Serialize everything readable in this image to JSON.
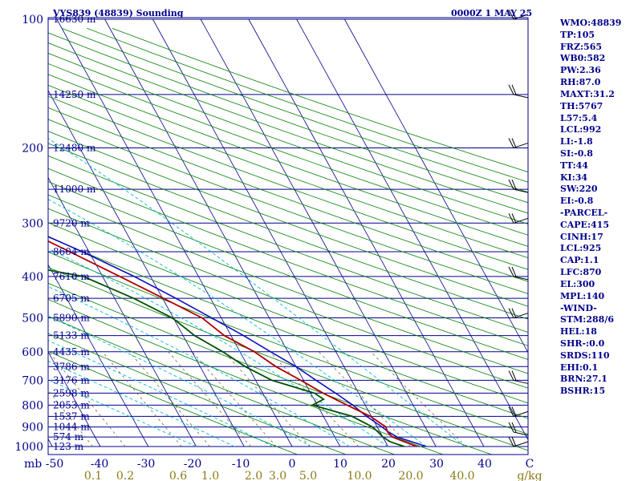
{
  "header": {
    "station_title": "VYS839 (48839) Sounding",
    "time_label": "0000Z  1 MAY 25"
  },
  "colors": {
    "frame": "#00008b",
    "isobar": "#00008b",
    "isotherm": "#00008b",
    "dry_adiabat": "#008000",
    "moist_adiabat": "#00bcd4",
    "mixing_ratio": "#6b6b3a",
    "temperature": "#b00000",
    "dewpoint": "#005000",
    "parcel": "#1010c0",
    "wind": "#000000",
    "label_text": "#00008b",
    "mixing_label_text": "#8b7a16"
  },
  "axes": {
    "pressure_ticks": [
      "100",
      "200",
      "300",
      "400",
      "500",
      "600",
      "700",
      "800",
      "900",
      "1000"
    ],
    "pressure_unit": "mb",
    "temperature_ticks": [
      "-50",
      "-40",
      "-30",
      "-20",
      "-10",
      "0",
      "10",
      "20",
      "30",
      "40",
      "C"
    ],
    "mixing_ratio_ticks": [
      "0.1",
      "0.2",
      "0.6",
      "1.0",
      "2.0",
      "3.0",
      "5.0",
      "10.0",
      "20.0",
      "40.0",
      "g/kg"
    ]
  },
  "heights": [
    {
      "p": 100,
      "label": "16630 m"
    },
    {
      "p": 150,
      "label": "14250 m"
    },
    {
      "p": 200,
      "label": "12480 m"
    },
    {
      "p": 250,
      "label": "11000 m"
    },
    {
      "p": 300,
      "label": "9720 m"
    },
    {
      "p": 350,
      "label": "8604 m"
    },
    {
      "p": 400,
      "label": "7610 m"
    },
    {
      "p": 450,
      "label": "6705 m"
    },
    {
      "p": 500,
      "label": "5890 m"
    },
    {
      "p": 550,
      "label": "5133 m"
    },
    {
      "p": 600,
      "label": "4435 m"
    },
    {
      "p": 650,
      "label": "3786 m"
    },
    {
      "p": 700,
      "label": "3176 m"
    },
    {
      "p": 750,
      "label": "2598 m"
    },
    {
      "p": 800,
      "label": "2053 m"
    },
    {
      "p": 850,
      "label": "1537 m"
    },
    {
      "p": 900,
      "label": "1044 m"
    },
    {
      "p": 950,
      "label": "574 m"
    },
    {
      "p": 1000,
      "label": "123 m"
    }
  ],
  "chart_data": {
    "type": "skew-t",
    "title": "VYS839 (48839) Sounding",
    "ylabel": "mb",
    "xlabel": "C",
    "pressure_range_mb": [
      100,
      1000
    ],
    "temperature_range_c": [
      -50,
      50
    ],
    "temperature_profile": [
      {
        "p": 1000,
        "t": 26.0
      },
      {
        "p": 975,
        "t": 24.0
      },
      {
        "p": 950,
        "t": 22.0
      },
      {
        "p": 925,
        "t": 21.6
      },
      {
        "p": 900,
        "t": 21.8
      },
      {
        "p": 850,
        "t": 19.8
      },
      {
        "p": 800,
        "t": 16.2
      },
      {
        "p": 750,
        "t": 12.6
      },
      {
        "p": 700,
        "t": 9.4
      },
      {
        "p": 650,
        "t": 5.8
      },
      {
        "p": 600,
        "t": 3.0
      },
      {
        "p": 550,
        "t": -1.4
      },
      {
        "p": 500,
        "t": -4.0
      },
      {
        "p": 450,
        "t": -9.8
      },
      {
        "p": 400,
        "t": -16.4
      },
      {
        "p": 350,
        "t": -24.0
      },
      {
        "p": 300,
        "t": -33.0
      },
      {
        "p": 250,
        "t": -43.0
      },
      {
        "p": 200,
        "t": -54.0
      },
      {
        "p": 170,
        "t": -61.0
      },
      {
        "p": 150,
        "t": -67.0
      },
      {
        "p": 130,
        "t": -72.0
      },
      {
        "p": 115,
        "t": -73.0
      },
      {
        "p": 105,
        "t": -73.8
      },
      {
        "p": 100,
        "t": -75.0
      }
    ],
    "dewpoint_profile": [
      {
        "p": 1000,
        "td": 23.4
      },
      {
        "p": 975,
        "td": 21.0
      },
      {
        "p": 950,
        "td": 20.0
      },
      {
        "p": 925,
        "td": 19.6
      },
      {
        "p": 900,
        "td": 19.0
      },
      {
        "p": 850,
        "td": 16.0
      },
      {
        "p": 800,
        "td": 9.0
      },
      {
        "p": 775,
        "td": 12.0
      },
      {
        "p": 750,
        "td": 10.8
      },
      {
        "p": 700,
        "td": 3.4
      },
      {
        "p": 650,
        "td": -0.6
      },
      {
        "p": 600,
        "td": -3.6
      },
      {
        "p": 550,
        "td": -7.6
      },
      {
        "p": 500,
        "td": -10.2
      },
      {
        "p": 450,
        "td": -16.0
      },
      {
        "p": 400,
        "td": -24.0
      },
      {
        "p": 380,
        "td": -33.8
      },
      {
        "p": 350,
        "td": -34.8
      },
      {
        "p": 330,
        "td": -43.0
      },
      {
        "p": 300,
        "td": -44.8
      },
      {
        "p": 270,
        "td": -49.2
      },
      {
        "p": 250,
        "td": -40.8
      },
      {
        "p": 220,
        "td": -55.0
      },
      {
        "p": 200,
        "td": -60.0
      },
      {
        "p": 180,
        "td": -58.0
      },
      {
        "p": 170,
        "td": -71.2
      },
      {
        "p": 160,
        "td": -70.0
      },
      {
        "p": 150,
        "td": -75.0
      },
      {
        "p": 130,
        "td": -73.6
      },
      {
        "p": 115,
        "td": -74.0
      },
      {
        "p": 105,
        "td": -76.0
      },
      {
        "p": 100,
        "td": -77.6
      }
    ],
    "parcel_profile": [
      {
        "p": 1000,
        "t": 28.0
      },
      {
        "p": 950,
        "t": 23.0
      },
      {
        "p": 925,
        "t": 21.8
      },
      {
        "p": 900,
        "t": 21.0
      },
      {
        "p": 850,
        "t": 19.0
      },
      {
        "p": 800,
        "t": 17.4
      },
      {
        "p": 750,
        "t": 15.2
      },
      {
        "p": 700,
        "t": 12.6
      },
      {
        "p": 650,
        "t": 10.0
      },
      {
        "p": 600,
        "t": 6.4
      },
      {
        "p": 550,
        "t": 2.6
      },
      {
        "p": 500,
        "t": -2.0
      },
      {
        "p": 450,
        "t": -7.2
      },
      {
        "p": 400,
        "t": -13.4
      },
      {
        "p": 350,
        "t": -21.4
      },
      {
        "p": 300,
        "t": -31.6
      },
      {
        "p": 250,
        "t": -44.0
      },
      {
        "p": 200,
        "t": -57.6
      },
      {
        "p": 150,
        "t": -73.8
      },
      {
        "p": 130,
        "t": -80.5
      },
      {
        "p": 115,
        "t": -86.0
      }
    ],
    "wind_barbs_mb": [
      100,
      150,
      200,
      250,
      300,
      400,
      500,
      700,
      850,
      925,
      1000
    ],
    "dry_adiabats_k": [
      270,
      280,
      290,
      300,
      310,
      320,
      330,
      340,
      350,
      360,
      370,
      380,
      390,
      400,
      410,
      420,
      430,
      440,
      450,
      460,
      470,
      480,
      490,
      500,
      510,
      520,
      530,
      540
    ],
    "moist_adiabats_c": [
      -20,
      -12,
      -4,
      4,
      12,
      20,
      28,
      36
    ],
    "mixing_ratio_lines_gkg": [
      0.1,
      0.2,
      0.6,
      1.0,
      2.0,
      3.0,
      5.0,
      10.0,
      20.0,
      40.0
    ]
  },
  "indices": [
    "WMO:48839",
    "TP:105",
    "FRZ:565",
    "WB0:582",
    "PW:2.36",
    "RH:87.0",
    "MAXT:31.2",
    "TH:5767",
    "L57:5.4",
    "LCL:992",
    "LI:-1.8",
    "SI:-0.8",
    "TT:44",
    "KI:34",
    "SW:220",
    "EI:-0.8",
    "-PARCEL-",
    "CAPE:415",
    "CINH:17",
    "LCL:925",
    "CAP:1.1",
    "LFC:870",
    "EL:300",
    "MPL:140",
    "-WIND-",
    "STM:288/6",
    "HEL:18",
    "SHR-:0.0",
    "SRDS:110",
    "EHI:0.1",
    "BRN:27.1",
    "BSHR:15"
  ]
}
